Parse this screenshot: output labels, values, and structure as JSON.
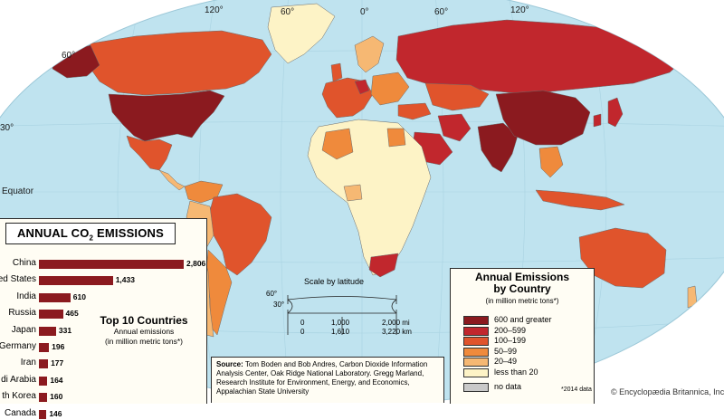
{
  "map": {
    "ocean_color": "#bfe3ef",
    "graticule_labels": {
      "top": [
        "120°",
        "60°",
        "0°",
        "60°",
        "120°"
      ],
      "left": [
        "60°",
        "30°",
        "Equator"
      ]
    }
  },
  "emissions_chart": {
    "title": "ANNUAL CO",
    "title_sub": "2",
    "title_suffix": " EMISSIONS",
    "heading": "Top 10 Countries",
    "subheading_line1": "Annual emissions",
    "subheading_line2": "(in million metric tons*)",
    "bar_color": "#8b1a1f"
  },
  "chart_data": {
    "type": "bar",
    "orientation": "horizontal",
    "title": "ANNUAL CO2 EMISSIONS",
    "categories": [
      "China",
      "United States",
      "India",
      "Russia",
      "Japan",
      "Germany",
      "Iran",
      "Saudi Arabia",
      "South Korea",
      "Canada"
    ],
    "visible_labels": [
      "China",
      "ed States",
      "India",
      "Russia",
      "Japan",
      "Germany",
      "Iran",
      "di Arabia",
      "th Korea",
      "Canada"
    ],
    "values": [
      2806,
      1433,
      610,
      465,
      331,
      196,
      177,
      164,
      160,
      146
    ]
  },
  "scale": {
    "title": "Scale by latitude",
    "lat_labels": [
      "60°",
      "30°"
    ],
    "row1": [
      "0",
      "1,000",
      "2,000 mi"
    ],
    "row2": [
      "0",
      "1,610",
      "3,220 km"
    ]
  },
  "source": {
    "label": "Source:",
    "text": "Tom Boden and Bob Andres, Carbon Dioxide Information Analysis Center, Oak Ridge National Laboratory. Gregg Marland, Research Institute for Environment, Energy, and Economics, Appalachian State University"
  },
  "legend": {
    "title_line1": "Annual Emissions",
    "title_line2": "by Country",
    "subtitle": "(in million metric tons*)",
    "items": [
      {
        "label": "600 and greater",
        "color": "#8b1a1f"
      },
      {
        "label": "200–599",
        "color": "#c1272d"
      },
      {
        "label": "100–199",
        "color": "#e0542c"
      },
      {
        "label": "50–99",
        "color": "#ef8a3c"
      },
      {
        "label": "20–49",
        "color": "#f6b873"
      },
      {
        "label": "less than 20",
        "color": "#fdf3c6"
      }
    ],
    "no_data": {
      "label": "no data",
      "color": "#c9c9c9"
    }
  },
  "footnote": "*2014 data",
  "credit": "© Encyclopædia Britannica, Inc."
}
